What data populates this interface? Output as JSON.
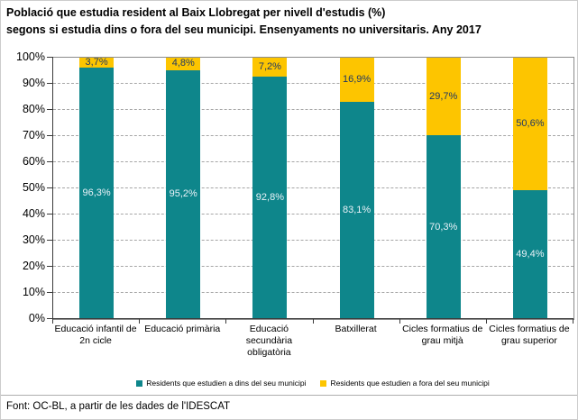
{
  "title": {
    "line1": "Població que estudia resident al Baix Llobregat per nivell d'estudis (%)",
    "line2": "segons si estudia dins o fora del seu municipi. Ensenyaments no universitaris.  Any 2017"
  },
  "footer": "Font: OC-BL, a partir de les dades de l'IDESCAT",
  "colors": {
    "dins": "#0e868b",
    "fora": "#fdc500",
    "label_on_dins": "#eaf2f8",
    "label_on_fora": "#1f3864",
    "gridline": "#a6a6a6",
    "plot_border": "#8c8c8c"
  },
  "legend": [
    {
      "label": "Residents que estudien a dins del seu municipi",
      "color": "#0e868b"
    },
    {
      "label": "Residents que estudien a fora del seu municipi",
      "color": "#fdc500"
    }
  ],
  "chart_data": {
    "type": "bar",
    "stacked": true,
    "categories": [
      "Educació infantil de 2n cicle",
      "Educació primària",
      "Educació secundària obligatòria",
      "Batxillerat",
      "Cicles formatius de grau mitjà",
      "Cicles formatius de grau superior"
    ],
    "series": [
      {
        "name": "Residents que estudien a dins del seu municipi",
        "values": [
          96.3,
          95.2,
          92.8,
          83.1,
          70.3,
          49.4
        ],
        "labels": [
          "96,3%",
          "95,2%",
          "92,8%",
          "83,1%",
          "70,3%",
          "49,4%"
        ]
      },
      {
        "name": "Residents que estudien a fora del seu municipi",
        "values": [
          3.7,
          4.8,
          7.2,
          16.9,
          29.7,
          50.6
        ],
        "labels": [
          "3,7%",
          "4,8%",
          "7,2%",
          "16,9%",
          "29,7%",
          "50,6%"
        ]
      }
    ],
    "ylim": [
      0,
      100
    ],
    "yticks": [
      "0%",
      "10%",
      "20%",
      "30%",
      "40%",
      "50%",
      "60%",
      "70%",
      "80%",
      "90%",
      "100%"
    ],
    "grid": "dashed horizontal",
    "legend_position": "bottom"
  }
}
